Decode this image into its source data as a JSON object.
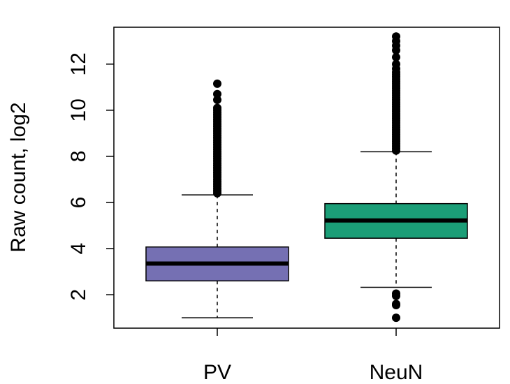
{
  "chart_data": {
    "type": "boxplot",
    "title": "",
    "xlabel": "",
    "ylabel": "Raw count, log2",
    "ylim": [
      0.55,
      13.6
    ],
    "yticks": [
      2,
      4,
      6,
      8,
      10,
      12
    ],
    "categories": [
      "PV",
      "NeuN"
    ],
    "boxes": [
      {
        "name": "PV",
        "color": "#7570b3",
        "whisker_low": 1.0,
        "q1": 2.6,
        "median": 3.35,
        "q3": 4.07,
        "whisker_high": 6.33,
        "outliers": [
          6.4,
          6.5,
          6.6,
          6.7,
          6.8,
          6.9,
          7.0,
          7.1,
          7.2,
          7.3,
          7.4,
          7.5,
          7.6,
          7.7,
          7.8,
          7.9,
          8.0,
          8.1,
          8.2,
          8.3,
          8.4,
          8.5,
          8.6,
          8.7,
          8.8,
          8.9,
          9.0,
          9.1,
          9.2,
          9.3,
          9.4,
          9.5,
          9.6,
          9.7,
          9.8,
          9.9,
          10.0,
          10.1,
          10.45,
          10.7,
          11.15
        ]
      },
      {
        "name": "NeuN",
        "color": "#1b9e77",
        "whisker_low": 2.32,
        "q1": 4.45,
        "median": 5.22,
        "q3": 5.95,
        "whisker_high": 8.2,
        "outliers": [
          1.0,
          1.55,
          1.6,
          1.95,
          2.05,
          8.25,
          8.35,
          8.45,
          8.55,
          8.65,
          8.75,
          8.85,
          8.95,
          9.05,
          9.15,
          9.25,
          9.35,
          9.45,
          9.55,
          9.65,
          9.75,
          9.85,
          9.95,
          10.05,
          10.15,
          10.25,
          10.35,
          10.45,
          10.55,
          10.65,
          10.75,
          10.85,
          10.95,
          11.05,
          11.15,
          11.25,
          11.35,
          11.45,
          11.55,
          11.65,
          11.8,
          12.0,
          12.3,
          12.6,
          12.8,
          13.0,
          13.2
        ]
      }
    ]
  }
}
